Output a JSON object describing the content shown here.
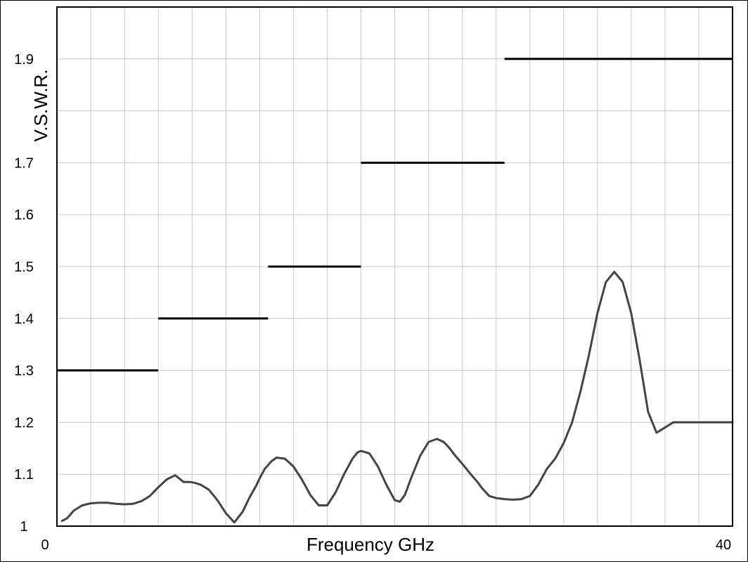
{
  "chart_data": {
    "type": "line",
    "title": "",
    "xlabel": "Frequency GHz",
    "ylabel": "V.S.W.R.",
    "xlim": [
      0,
      40
    ],
    "ylim": [
      1.0,
      2.0
    ],
    "x_tick_labels": [
      "0",
      "40"
    ],
    "y_tick_labels": [
      {
        "value": 1.0,
        "label": "1"
      },
      {
        "value": 1.1,
        "label": "1.1"
      },
      {
        "value": 1.2,
        "label": "1.2"
      },
      {
        "value": 1.3,
        "label": "1.3"
      },
      {
        "value": 1.4,
        "label": "1.4"
      },
      {
        "value": 1.5,
        "label": "1.5"
      },
      {
        "value": 1.6,
        "label": "1.6"
      },
      {
        "value": 1.7,
        "label": "1.7"
      },
      {
        "value": 1.9,
        "label": "1.9"
      }
    ],
    "grid": true,
    "grid_x_step": 2,
    "grid_y_step": 0.1,
    "spec_limits": [
      {
        "x_start": 0,
        "x_end": 6,
        "value": 1.3
      },
      {
        "x_start": 6,
        "x_end": 12.5,
        "value": 1.4
      },
      {
        "x_start": 12.5,
        "x_end": 18,
        "value": 1.5
      },
      {
        "x_start": 18,
        "x_end": 26.5,
        "value": 1.7
      },
      {
        "x_start": 26.5,
        "x_end": 40,
        "value": 1.9
      }
    ],
    "series": [
      {
        "color": "#444444",
        "x": [
          0.3,
          0.6,
          1.0,
          1.5,
          2.0,
          2.5,
          3.0,
          3.5,
          4.0,
          4.5,
          5.0,
          5.5,
          6.0,
          6.5,
          7.0,
          7.5,
          7.9,
          8.2,
          8.5,
          9.0,
          9.5,
          10.0,
          10.5,
          11.0,
          11.4,
          11.8,
          12.0,
          12.3,
          12.7,
          13.0,
          13.5,
          14.0,
          14.5,
          15.0,
          15.5,
          16.0,
          16.5,
          17.0,
          17.5,
          17.8,
          18.0,
          18.5,
          19.0,
          19.5,
          20.0,
          20.3,
          20.6,
          21.0,
          21.5,
          22.0,
          22.5,
          22.9,
          23.2,
          23.6,
          24.0,
          24.5,
          24.9,
          25.2,
          25.6,
          26.0,
          26.5,
          27.0,
          27.5,
          28.0,
          28.5,
          29.0,
          29.5,
          30.0,
          30.5,
          31.0,
          31.5,
          32.0,
          32.5,
          33.0,
          33.5,
          34.0,
          34.5,
          35.0,
          35.5,
          36.0,
          36.5,
          37.0,
          37.4,
          37.8,
          38.2,
          38.6,
          39.0,
          39.4,
          39.7,
          40.0
        ],
        "values": [
          1.01,
          1.015,
          1.03,
          1.04,
          1.044,
          1.045,
          1.045,
          1.043,
          1.042,
          1.043,
          1.048,
          1.058,
          1.075,
          1.09,
          1.098,
          1.085,
          1.085,
          1.083,
          1.08,
          1.07,
          1.05,
          1.025,
          1.007,
          1.028,
          1.055,
          1.078,
          1.092,
          1.11,
          1.125,
          1.132,
          1.13,
          1.115,
          1.09,
          1.06,
          1.04,
          1.04,
          1.065,
          1.1,
          1.13,
          1.142,
          1.145,
          1.14,
          1.115,
          1.08,
          1.05,
          1.047,
          1.06,
          1.095,
          1.135,
          1.162,
          1.168,
          1.162,
          1.152,
          1.135,
          1.12,
          1.1,
          1.085,
          1.072,
          1.058,
          1.054,
          1.052,
          1.051,
          1.052,
          1.058,
          1.08,
          1.11,
          1.13,
          1.16,
          1.2,
          1.26,
          1.33,
          1.41,
          1.47,
          1.49,
          1.47,
          1.41,
          1.32,
          1.22,
          1.18,
          1.19,
          1.2,
          1.2,
          1.2,
          1.2,
          1.2,
          1.2,
          1.2,
          1.2,
          1.2,
          1.2
        ]
      }
    ]
  }
}
